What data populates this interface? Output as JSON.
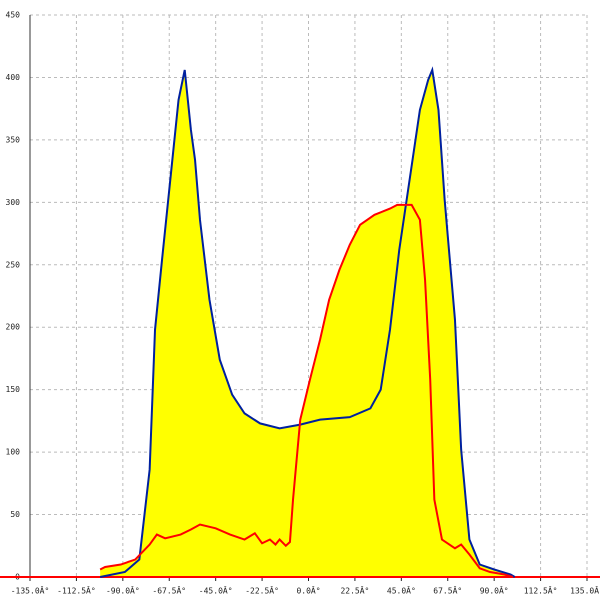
{
  "chart_data": {
    "type": "area",
    "xlim": [
      -135,
      135
    ],
    "ylim": [
      0,
      450
    ],
    "xticks": [
      {
        "value": -135,
        "label": "-135.0Â°"
      },
      {
        "value": -112.5,
        "label": "-112.5Â°"
      },
      {
        "value": -90,
        "label": "-90.0Â°"
      },
      {
        "value": -67.5,
        "label": "-67.5Â°"
      },
      {
        "value": -45,
        "label": "-45.0Â°"
      },
      {
        "value": -22.5,
        "label": "-22.5Â°"
      },
      {
        "value": 0,
        "label": "0.0Â°"
      },
      {
        "value": 22.5,
        "label": "22.5Â°"
      },
      {
        "value": 45,
        "label": "45.0Â°"
      },
      {
        "value": 67.5,
        "label": "67.5Â°"
      },
      {
        "value": 90,
        "label": "90.0Â°"
      },
      {
        "value": 112.5,
        "label": "112.5Â°"
      },
      {
        "value": 135,
        "label": "135.0Â°"
      }
    ],
    "yticks": [
      0,
      50,
      100,
      150,
      200,
      250,
      300,
      350,
      400,
      450
    ],
    "grid": true,
    "fill_color": "#ffff00",
    "axis_color": "#ff0000",
    "series": [
      {
        "color": "#00209f",
        "x": [
          -101,
          -89,
          -82,
          -77,
          -74.4,
          -71,
          -67,
          -63,
          -60,
          -57,
          -55,
          -52.6,
          -48,
          -43,
          -37,
          -31,
          -23.5,
          -14,
          -4,
          5.6,
          20,
          30,
          35,
          39.5,
          44,
          49,
          54,
          58,
          60,
          63,
          66,
          71,
          74,
          78,
          83,
          90,
          98,
          100
        ],
        "values": [
          0,
          4,
          14,
          86,
          198,
          254,
          318,
          382,
          406,
          358,
          334,
          286,
          222,
          174,
          146,
          131,
          123,
          119,
          122,
          126,
          128,
          135,
          150,
          198,
          262,
          318,
          374,
          398,
          406,
          374,
          302,
          206,
          102,
          30,
          10,
          6,
          2,
          0
        ]
      },
      {
        "color": "#ff0000",
        "x": [
          -101,
          -98.6,
          -91,
          -84,
          -77,
          -73.5,
          -69.5,
          -62,
          -57,
          -52.6,
          -45,
          -38,
          -31,
          -26,
          -22.5,
          -18.7,
          -16,
          -14,
          -11,
          -9,
          -7.5,
          -4,
          0.7,
          5.6,
          10,
          15,
          20,
          25,
          32,
          39.5,
          43,
          50,
          54,
          56.5,
          59,
          61,
          64.7,
          71,
          74,
          78,
          83,
          88,
          95,
          99
        ],
        "values": [
          6,
          8,
          10,
          14,
          26,
          34,
          31,
          34,
          38,
          42,
          39,
          34,
          30,
          35,
          27,
          30,
          26,
          30,
          25,
          28,
          62,
          126,
          158,
          190,
          222,
          246,
          266,
          282,
          290,
          295,
          298,
          298,
          286,
          238,
          158,
          62,
          30,
          23,
          26,
          18,
          7,
          4,
          2,
          0
        ]
      }
    ]
  }
}
